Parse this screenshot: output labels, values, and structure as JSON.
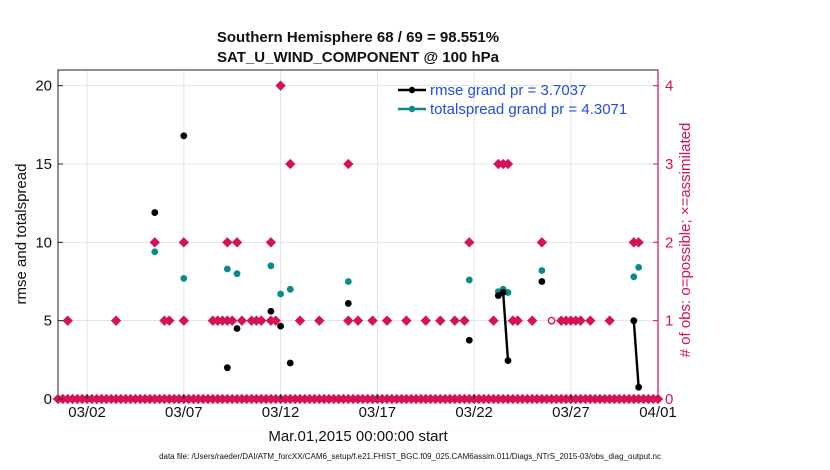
{
  "chart_data": {
    "type": "scatter",
    "title_line1": "Southern Hemisphere 68 / 69 = 98.551%",
    "title_line2": "SAT_U_WIND_COMPONENT @ 100 hPa",
    "xlabel": "Mar.01,2015 00:00:00 start",
    "ylabel": "rmse and totalspread",
    "ylabel_right": "# of obs: o=possible; ×=assimilated",
    "footer": "data file: /Users/raeder/DAI/ATM_forcXX/CAM6_setup/f.e21.FHIST_BGC.f09_025.CAM6assim.011/Diags_NTrS_2015-03/obs_diag_output.nc",
    "xlim": [
      0.5,
      31.5
    ],
    "ylim": [
      0,
      21
    ],
    "ylim_right": [
      0,
      4.2
    ],
    "x_ticks": [
      {
        "x": 2,
        "label": "03/02"
      },
      {
        "x": 7,
        "label": "03/07"
      },
      {
        "x": 12,
        "label": "03/12"
      },
      {
        "x": 17,
        "label": "03/17"
      },
      {
        "x": 22,
        "label": "03/22"
      },
      {
        "x": 27,
        "label": "03/27"
      },
      {
        "x": 32,
        "label": "04/01"
      }
    ],
    "y_ticks": [
      0,
      5,
      10,
      15,
      20
    ],
    "y_ticks_right": [
      0,
      1,
      2,
      3,
      4
    ],
    "colors": {
      "rmse": "#000000",
      "spread": "#0a8a8a",
      "obs": "#d6115a",
      "legend_text": "#1f4ee0",
      "grid": "#e3e3e3"
    },
    "legend": [
      {
        "name": "rmse grand pr = 3.7037"
      },
      {
        "name": "totalspread grand pr = 4.3071"
      }
    ],
    "series": [
      {
        "name": "rmse",
        "points": [
          [
            5.5,
            11.9
          ],
          [
            7.0,
            16.8
          ],
          [
            9.25,
            2.0
          ],
          [
            9.75,
            4.5
          ],
          [
            11.5,
            5.6
          ],
          [
            12.0,
            4.65
          ],
          [
            12.5,
            2.3
          ],
          [
            15.5,
            6.1
          ],
          [
            21.75,
            3.75
          ],
          [
            23.25,
            6.6
          ],
          [
            23.5,
            6.8
          ],
          [
            25.5,
            7.5
          ],
          [
            30.25,
            5.0
          ]
        ],
        "lines": [
          [
            [
              23.5,
              6.8
            ],
            [
              23.75,
              2.45
            ]
          ],
          [
            [
              30.25,
              5.0
            ],
            [
              30.5,
              0.75
            ]
          ]
        ],
        "extra_points": [
          [
            23.75,
            2.45
          ],
          [
            30.5,
            0.75
          ]
        ]
      },
      {
        "name": "totalspread",
        "points": [
          [
            5.5,
            9.4
          ],
          [
            7.0,
            7.7
          ],
          [
            9.25,
            8.3
          ],
          [
            9.75,
            8.0
          ],
          [
            11.5,
            8.5
          ],
          [
            12.0,
            6.7
          ],
          [
            12.5,
            7.0
          ],
          [
            15.5,
            7.5
          ],
          [
            21.75,
            7.6
          ],
          [
            23.25,
            6.85
          ],
          [
            23.5,
            7.0
          ],
          [
            23.75,
            6.8
          ],
          [
            25.5,
            8.2
          ],
          [
            30.25,
            7.8
          ],
          [
            30.5,
            8.4
          ]
        ]
      },
      {
        "name": "obs_assimilated",
        "points": [
          [
            0.5,
            0
          ],
          [
            0.75,
            0
          ],
          [
            1.0,
            1
          ],
          [
            1.0,
            0
          ],
          [
            1.25,
            0
          ],
          [
            1.5,
            0
          ],
          [
            1.75,
            0
          ],
          [
            2.0,
            0
          ],
          [
            2.25,
            0
          ],
          [
            2.5,
            0
          ],
          [
            2.75,
            0
          ],
          [
            3.0,
            0
          ],
          [
            3.25,
            0
          ],
          [
            3.5,
            1
          ],
          [
            3.5,
            0
          ],
          [
            3.75,
            0
          ],
          [
            4.0,
            0
          ],
          [
            4.25,
            0
          ],
          [
            4.5,
            0
          ],
          [
            4.75,
            0
          ],
          [
            5.0,
            0
          ],
          [
            5.25,
            0
          ],
          [
            5.5,
            2
          ],
          [
            5.5,
            0
          ],
          [
            5.75,
            0
          ],
          [
            6.0,
            1
          ],
          [
            6.0,
            0
          ],
          [
            6.25,
            1
          ],
          [
            6.25,
            0
          ],
          [
            6.5,
            0
          ],
          [
            6.75,
            0
          ],
          [
            7.0,
            2
          ],
          [
            7.0,
            1
          ],
          [
            7.0,
            0
          ],
          [
            7.25,
            0
          ],
          [
            7.5,
            0
          ],
          [
            7.75,
            0
          ],
          [
            8.0,
            0
          ],
          [
            8.25,
            0
          ],
          [
            8.5,
            1
          ],
          [
            8.5,
            0
          ],
          [
            8.75,
            1
          ],
          [
            8.75,
            0
          ],
          [
            9.0,
            1
          ],
          [
            9.0,
            0
          ],
          [
            9.25,
            2
          ],
          [
            9.25,
            1
          ],
          [
            9.25,
            0
          ],
          [
            9.5,
            1
          ],
          [
            9.5,
            0
          ],
          [
            9.75,
            2
          ],
          [
            9.75,
            0
          ],
          [
            10.0,
            1
          ],
          [
            10.0,
            0
          ],
          [
            10.25,
            0
          ],
          [
            10.5,
            1
          ],
          [
            10.5,
            0
          ],
          [
            10.75,
            1
          ],
          [
            10.75,
            0
          ],
          [
            11.0,
            1
          ],
          [
            11.0,
            0
          ],
          [
            11.25,
            0
          ],
          [
            11.5,
            2
          ],
          [
            11.5,
            1
          ],
          [
            11.5,
            0
          ],
          [
            11.75,
            1
          ],
          [
            11.75,
            0
          ],
          [
            12.0,
            4
          ],
          [
            12.0,
            0
          ],
          [
            12.25,
            0
          ],
          [
            12.5,
            3
          ],
          [
            12.5,
            0
          ],
          [
            12.75,
            0
          ],
          [
            13.0,
            1
          ],
          [
            13.0,
            0
          ],
          [
            13.25,
            0
          ],
          [
            13.5,
            0
          ],
          [
            13.75,
            0
          ],
          [
            14.0,
            1
          ],
          [
            14.0,
            0
          ],
          [
            14.25,
            0
          ],
          [
            14.5,
            0
          ],
          [
            14.75,
            0
          ],
          [
            15.0,
            0
          ],
          [
            15.25,
            0
          ],
          [
            15.5,
            3
          ],
          [
            15.5,
            1
          ],
          [
            15.5,
            0
          ],
          [
            15.75,
            0
          ],
          [
            16.0,
            1
          ],
          [
            16.0,
            0
          ],
          [
            16.25,
            0
          ],
          [
            16.5,
            0
          ],
          [
            16.75,
            1
          ],
          [
            16.75,
            0
          ],
          [
            17.0,
            0
          ],
          [
            17.25,
            0
          ],
          [
            17.5,
            1
          ],
          [
            17.5,
            0
          ],
          [
            17.75,
            0
          ],
          [
            18.0,
            0
          ],
          [
            18.25,
            0
          ],
          [
            18.5,
            1
          ],
          [
            18.5,
            0
          ],
          [
            18.75,
            0
          ],
          [
            19.0,
            0
          ],
          [
            19.25,
            0
          ],
          [
            19.5,
            1
          ],
          [
            19.5,
            0
          ],
          [
            19.75,
            0
          ],
          [
            20.0,
            0
          ],
          [
            20.25,
            1
          ],
          [
            20.25,
            0
          ],
          [
            20.5,
            0
          ],
          [
            20.75,
            0
          ],
          [
            21.0,
            1
          ],
          [
            21.0,
            0
          ],
          [
            21.25,
            0
          ],
          [
            21.5,
            1
          ],
          [
            21.5,
            0
          ],
          [
            21.75,
            2
          ],
          [
            21.75,
            0
          ],
          [
            22.0,
            0
          ],
          [
            22.25,
            0
          ],
          [
            22.5,
            0
          ],
          [
            22.75,
            0
          ],
          [
            23.0,
            1
          ],
          [
            23.0,
            0
          ],
          [
            23.25,
            3
          ],
          [
            23.25,
            0
          ],
          [
            23.5,
            3
          ],
          [
            23.5,
            0
          ],
          [
            23.75,
            3
          ],
          [
            23.75,
            0
          ],
          [
            24.0,
            1
          ],
          [
            24.0,
            0
          ],
          [
            24.25,
            1
          ],
          [
            24.25,
            0
          ],
          [
            24.5,
            0
          ],
          [
            24.75,
            0
          ],
          [
            25.0,
            1
          ],
          [
            25.0,
            0
          ],
          [
            25.25,
            0
          ],
          [
            25.5,
            2
          ],
          [
            25.5,
            0
          ],
          [
            25.75,
            0
          ],
          [
            26.0,
            0
          ],
          [
            26.25,
            0
          ],
          [
            26.5,
            1
          ],
          [
            26.5,
            0
          ],
          [
            26.75,
            1
          ],
          [
            26.75,
            0
          ],
          [
            27.0,
            1
          ],
          [
            27.0,
            0
          ],
          [
            27.25,
            1
          ],
          [
            27.25,
            0
          ],
          [
            27.5,
            1
          ],
          [
            27.5,
            0
          ],
          [
            27.75,
            0
          ],
          [
            28.0,
            1
          ],
          [
            28.0,
            0
          ],
          [
            28.25,
            0
          ],
          [
            28.5,
            0
          ],
          [
            28.75,
            0
          ],
          [
            29.0,
            1
          ],
          [
            29.0,
            0
          ],
          [
            29.25,
            0
          ],
          [
            29.5,
            0
          ],
          [
            29.75,
            0
          ],
          [
            30.0,
            0
          ],
          [
            30.25,
            2
          ],
          [
            30.25,
            0
          ],
          [
            30.5,
            2
          ],
          [
            30.5,
            0
          ],
          [
            30.75,
            0
          ],
          [
            31.0,
            0
          ],
          [
            31.25,
            0
          ],
          [
            31.5,
            0
          ]
        ]
      },
      {
        "name": "obs_possible",
        "points": [
          [
            26.0,
            1
          ]
        ]
      }
    ]
  }
}
